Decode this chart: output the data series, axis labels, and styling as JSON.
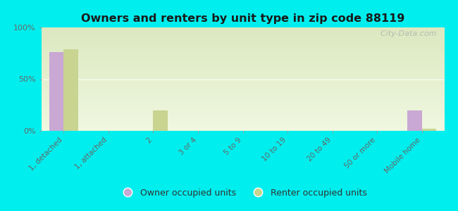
{
  "title": "Owners and renters by unit type in zip code 88119",
  "categories": [
    "1, detached",
    "1, attached",
    "2",
    "3 or 4",
    "5 to 9",
    "10 to 19",
    "20 to 49",
    "50 or more",
    "Mobile home"
  ],
  "owner_values": [
    76,
    0,
    0,
    0,
    0,
    0,
    0,
    0,
    20
  ],
  "renter_values": [
    79,
    0,
    20,
    0,
    0,
    0,
    0,
    0,
    2
  ],
  "owner_color": "#c9a8d4",
  "renter_color": "#c8d490",
  "background_color": "#00eeee",
  "grad_color_topleft": "#dce8c0",
  "grad_color_bottomright": "#f0f8e0",
  "ylim": [
    0,
    100
  ],
  "yticks": [
    0,
    50,
    100
  ],
  "ytick_labels": [
    "0%",
    "50%",
    "100%"
  ],
  "bar_width": 0.32,
  "watermark": "  City-Data.com",
  "legend_labels": [
    "Owner occupied units",
    "Renter occupied units"
  ]
}
